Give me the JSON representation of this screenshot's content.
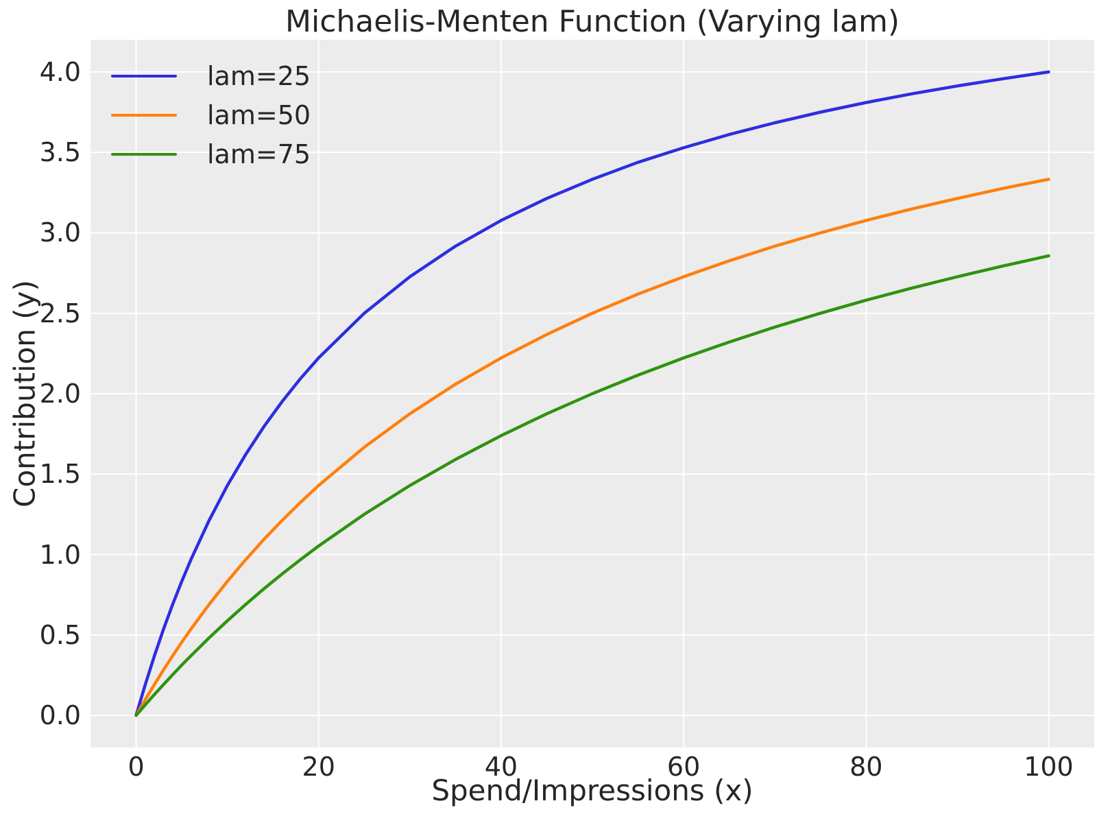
{
  "colors": {
    "figure_bg": "#ffffff",
    "plot_bg": "#ececec",
    "grid": "#ffffff",
    "text": "#262626"
  },
  "chart_data": {
    "type": "line",
    "title": "Michaelis-Menten Function (Varying lam)",
    "xlabel": "Spend/Impressions (x)",
    "ylabel": "Contribution (y)",
    "xlim": [
      -5,
      105
    ],
    "ylim": [
      -0.2,
      4.2
    ],
    "grid": true,
    "legend_position": "upper left",
    "xtick_values": [
      0,
      20,
      40,
      60,
      80,
      100
    ],
    "xtick_labels": [
      "0",
      "20",
      "40",
      "60",
      "80",
      "100"
    ],
    "ytick_values": [
      0.0,
      0.5,
      1.0,
      1.5,
      2.0,
      2.5,
      3.0,
      3.5,
      4.0
    ],
    "ytick_labels": [
      "0.0",
      "0.5",
      "1.0",
      "1.5",
      "2.0",
      "2.5",
      "3.0",
      "3.5",
      "4.0"
    ],
    "x": [
      0,
      1,
      2,
      3,
      4,
      5,
      6,
      8,
      10,
      12,
      14,
      16,
      18,
      20,
      25,
      30,
      35,
      40,
      45,
      50,
      55,
      60,
      65,
      70,
      75,
      80,
      85,
      90,
      95,
      100
    ],
    "series": [
      {
        "name": "lam=25",
        "color": "#2d2de1",
        "values": [
          0,
          0.192,
          0.37,
          0.536,
          0.69,
          0.833,
          0.968,
          1.212,
          1.429,
          1.622,
          1.795,
          1.951,
          2.093,
          2.222,
          2.5,
          2.727,
          2.917,
          3.077,
          3.214,
          3.333,
          3.438,
          3.529,
          3.611,
          3.684,
          3.75,
          3.81,
          3.864,
          3.913,
          3.958,
          4.0
        ]
      },
      {
        "name": "lam=50",
        "color": "#ff7f0e",
        "values": [
          0,
          0.098,
          0.192,
          0.283,
          0.37,
          0.455,
          0.536,
          0.69,
          0.833,
          0.968,
          1.094,
          1.212,
          1.324,
          1.429,
          1.667,
          1.875,
          2.059,
          2.222,
          2.368,
          2.5,
          2.619,
          2.727,
          2.826,
          2.917,
          3.0,
          3.077,
          3.148,
          3.214,
          3.276,
          3.333
        ]
      },
      {
        "name": "lam=75",
        "color": "#2f930f",
        "values": [
          0,
          0.066,
          0.13,
          0.192,
          0.253,
          0.313,
          0.37,
          0.482,
          0.588,
          0.69,
          0.787,
          0.879,
          0.968,
          1.053,
          1.25,
          1.429,
          1.591,
          1.739,
          1.875,
          2.0,
          2.115,
          2.222,
          2.321,
          2.414,
          2.5,
          2.581,
          2.656,
          2.727,
          2.794,
          2.857
        ]
      }
    ]
  }
}
